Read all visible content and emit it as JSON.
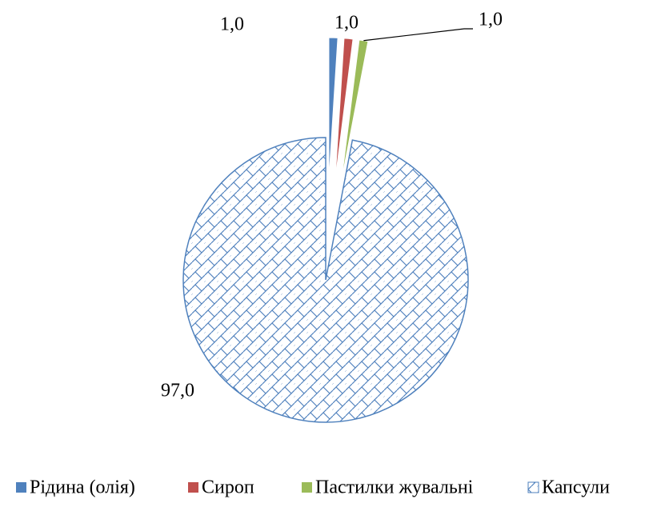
{
  "chart_data": {
    "type": "pie",
    "categories": [
      "Рідина (олія)",
      "Сироп",
      "Пастилки жувальні",
      "Капсули"
    ],
    "values": [
      1,
      1,
      1,
      97
    ],
    "value_labels": [
      "1,0",
      "1,0",
      "1,0",
      "97,0"
    ],
    "colors": [
      "#4f81bd",
      "#c0504d",
      "#9bbb59",
      "#4f81bd"
    ],
    "hatched": [
      false,
      false,
      false,
      true
    ],
    "legend": "bottom"
  }
}
